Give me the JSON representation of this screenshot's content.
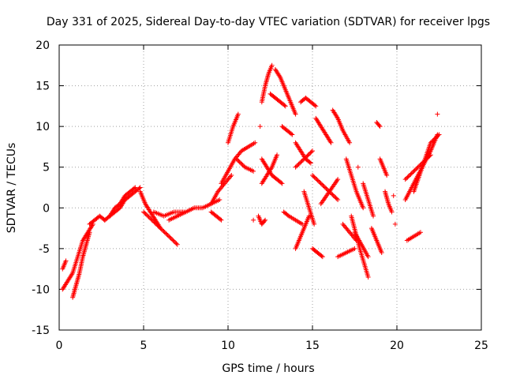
{
  "chart_data": {
    "type": "scatter",
    "title": "Day 331 of 2025, Sidereal Day-to-day VTEC variation (SDTVAR) for receiver lpgs",
    "xlabel": "GPS time / hours",
    "ylabel": "SDTVAR / TECUs",
    "xlim": [
      0,
      25
    ],
    "ylim": [
      -15,
      20
    ],
    "x_ticks": [
      "0",
      "5",
      "10",
      "15",
      "20",
      "25"
    ],
    "y_ticks": [
      "-15",
      "-10",
      "-5",
      "0",
      "5",
      "10",
      "15",
      "20"
    ],
    "grid": true,
    "marker": "+",
    "color": "#ff0000",
    "segments": [
      {
        "x": [
          0.2,
          0.5,
          0.8,
          1.1,
          1.4,
          1.7,
          2.0
        ],
        "y": [
          -10,
          -9,
          -8,
          -6,
          -4,
          -3,
          -2
        ]
      },
      {
        "x": [
          0.2,
          0.3,
          0.4
        ],
        "y": [
          -7.5,
          -7,
          -6.5
        ]
      },
      {
        "x": [
          0.8,
          1.0,
          1.2,
          1.4,
          1.6,
          1.8
        ],
        "y": [
          -11,
          -9.5,
          -8,
          -6,
          -4.5,
          -3
        ]
      },
      {
        "x": [
          1.8,
          2.1,
          2.4,
          2.7
        ],
        "y": [
          -2,
          -1.5,
          -1,
          -1.5
        ]
      },
      {
        "x": [
          2.7,
          3.0,
          3.3,
          3.6,
          3.9,
          4.2,
          4.5,
          4.8
        ],
        "y": [
          -1.5,
          -1,
          -0.5,
          0,
          1,
          1.5,
          2,
          2.5
        ]
      },
      {
        "x": [
          3.0,
          3.3,
          3.6,
          3.9,
          4.2,
          4.5
        ],
        "y": [
          -1,
          0,
          0.5,
          1.5,
          2,
          2.5
        ]
      },
      {
        "x": [
          4.8,
          5.1,
          5.4,
          5.7,
          6.0
        ],
        "y": [
          2,
          0.5,
          -0.5,
          -1.5,
          -2.5
        ]
      },
      {
        "x": [
          5.0,
          5.5,
          6.0,
          6.5,
          7.0
        ],
        "y": [
          -0.5,
          -1.5,
          -2.5,
          -3.5,
          -4.5
        ]
      },
      {
        "x": [
          5.6,
          6.2,
          6.8,
          7.4
        ],
        "y": [
          -0.5,
          -1,
          -0.5,
          -0.5
        ]
      },
      {
        "x": [
          6.5,
          7.0,
          7.5,
          8.0,
          8.5,
          9.0,
          9.5
        ],
        "y": [
          -1.5,
          -1,
          -0.5,
          0,
          0,
          0.5,
          1
        ]
      },
      {
        "x": [
          9.0,
          9.3,
          9.6
        ],
        "y": [
          -0.5,
          -1,
          -1.5
        ]
      },
      {
        "x": [
          9.0,
          9.4,
          9.8,
          10.2
        ],
        "y": [
          0.5,
          2,
          3,
          4
        ]
      },
      {
        "x": [
          9.6,
          10.0,
          10.4,
          10.8,
          11.2,
          11.6
        ],
        "y": [
          3,
          4.5,
          6,
          7,
          7.5,
          8
        ]
      },
      {
        "x": [
          10.0,
          10.3,
          10.6
        ],
        "y": [
          8,
          10,
          11.5
        ]
      },
      {
        "x": [
          10.5,
          11.0,
          11.5
        ],
        "y": [
          6,
          5,
          4.5
        ]
      },
      {
        "x": [
          11.5
        ],
        "y": [
          -1.5
        ]
      },
      {
        "x": [
          11.8,
          12.0,
          12.2
        ],
        "y": [
          -1,
          -2,
          -1.5
        ]
      },
      {
        "x": [
          12.0,
          12.3,
          12.6,
          12.9,
          13.2
        ],
        "y": [
          6,
          5,
          4,
          3.5,
          3
        ]
      },
      {
        "x": [
          12.0,
          12.3,
          12.6,
          12.9
        ],
        "y": [
          3,
          4,
          5,
          6.5
        ]
      },
      {
        "x": [
          11.9
        ],
        "y": [
          10
        ]
      },
      {
        "x": [
          12.0,
          12.2,
          12.4,
          12.6
        ],
        "y": [
          13,
          15,
          16.5,
          17.5
        ]
      },
      {
        "x": [
          12.5,
          12.8,
          13.1,
          13.4
        ],
        "y": [
          14,
          13.5,
          13,
          12.5
        ]
      },
      {
        "x": [
          12.8,
          13.1,
          13.4,
          13.7,
          14.0
        ],
        "y": [
          17,
          16,
          14.5,
          13,
          11.5
        ]
      },
      {
        "x": [
          13.2,
          13.5,
          13.8
        ],
        "y": [
          10,
          9.5,
          9
        ]
      },
      {
        "x": [
          13.3,
          13.6,
          14.0,
          14.4
        ],
        "y": [
          -0.5,
          -1,
          -1.5,
          -2
        ]
      },
      {
        "x": [
          14.0,
          14.3,
          14.6,
          14.9
        ],
        "y": [
          8,
          7,
          6,
          5.5
        ]
      },
      {
        "x": [
          14.0,
          14.5,
          15.0
        ],
        "y": [
          5,
          6,
          7
        ]
      },
      {
        "x": [
          14.3,
          14.6,
          14.9,
          15.2
        ],
        "y": [
          13,
          13.5,
          13,
          12.5
        ]
      },
      {
        "x": [
          14.5,
          14.8,
          15.1
        ],
        "y": [
          2,
          0,
          -2
        ]
      },
      {
        "x": [
          14.0,
          14.4,
          14.8
        ],
        "y": [
          -5,
          -3,
          -1
        ]
      },
      {
        "x": [
          15.0,
          15.3,
          15.6
        ],
        "y": [
          -5,
          -5.5,
          -6
        ]
      },
      {
        "x": [
          15.2,
          15.5,
          15.8,
          16.1
        ],
        "y": [
          11,
          10,
          9,
          8
        ]
      },
      {
        "x": [
          15.0,
          15.5,
          16.0,
          16.5
        ],
        "y": [
          4,
          3,
          2,
          1
        ]
      },
      {
        "x": [
          15.5,
          16.0,
          16.5
        ],
        "y": [
          0.5,
          2,
          3.5
        ]
      },
      {
        "x": [
          16.2,
          16.5,
          16.8,
          17.2
        ],
        "y": [
          12,
          11,
          9.5,
          8
        ]
      },
      {
        "x": [
          16.5,
          17.0,
          17.5
        ],
        "y": [
          -6,
          -5.5,
          -5
        ]
      },
      {
        "x": [
          16.8,
          17.2,
          17.6
        ],
        "y": [
          -2,
          -3,
          -4
        ]
      },
      {
        "x": [
          17.0,
          17.3,
          17.6,
          18.0
        ],
        "y": [
          6,
          4,
          2,
          0
        ]
      },
      {
        "x": [
          17.3,
          17.8,
          18.3
        ],
        "y": [
          -1,
          -5,
          -8.5
        ]
      },
      {
        "x": [
          17.5,
          17.9,
          18.3
        ],
        "y": [
          -3,
          -4.5,
          -6
        ]
      },
      {
        "x": [
          17.7
        ],
        "y": [
          5
        ]
      },
      {
        "x": [
          18.0,
          18.3,
          18.6
        ],
        "y": [
          3,
          1,
          -1
        ]
      },
      {
        "x": [
          18.5,
          18.8,
          19.1
        ],
        "y": [
          -2.5,
          -4,
          -5.5
        ]
      },
      {
        "x": [
          18.8,
          19.0
        ],
        "y": [
          10.5,
          10
        ]
      },
      {
        "x": [
          19.0,
          19.2,
          19.4
        ],
        "y": [
          6,
          5,
          4
        ]
      },
      {
        "x": [
          19.3,
          19.5,
          19.7
        ],
        "y": [
          2,
          0.5,
          -0.5
        ]
      },
      {
        "x": [
          19.8
        ],
        "y": [
          1.5
        ]
      },
      {
        "x": [
          19.9
        ],
        "y": [
          -2
        ]
      },
      {
        "x": [
          20.5,
          21.0,
          21.5,
          22.0,
          22.4
        ],
        "y": [
          1,
          3,
          5,
          7,
          9
        ]
      },
      {
        "x": [
          20.5,
          21.0,
          21.5,
          22.0
        ],
        "y": [
          3.5,
          4.5,
          5.5,
          6.5
        ]
      },
      {
        "x": [
          20.6,
          21.0,
          21.4
        ],
        "y": [
          -4,
          -3.5,
          -3
        ]
      },
      {
        "x": [
          21.0,
          21.5,
          22.0,
          22.5
        ],
        "y": [
          2,
          5,
          8,
          9
        ]
      },
      {
        "x": [
          22.4
        ],
        "y": [
          11.5
        ]
      }
    ]
  }
}
